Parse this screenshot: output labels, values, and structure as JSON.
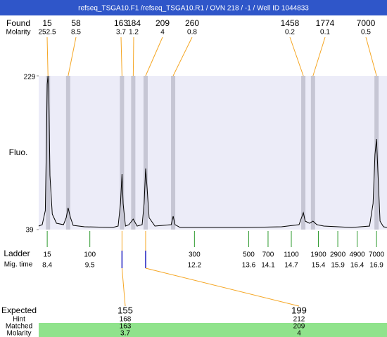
{
  "header": "refseq_TSGA10.F1 /refseq_TSGA10.R1 / OVN 218 / -1 / Well ID 1044833",
  "labels": {
    "found": "Found",
    "molarity": "Molarity",
    "fluo": "Fluo.",
    "ladder": "Ladder",
    "mig_time": "Mig. time",
    "expected": "Expected",
    "hint": "Hint",
    "matched": "Matched",
    "molarity_row": "Molarity"
  },
  "chart_data": {
    "type": "line",
    "xlim": [
      8.18,
      17.17
    ],
    "ylim": [
      39,
      229
    ],
    "yticks": [
      229,
      39
    ],
    "color": "#000000",
    "x": [
      8.18,
      8.27,
      8.35,
      8.38,
      8.4,
      8.42,
      8.44,
      8.47,
      8.53,
      8.64,
      8.82,
      8.89,
      8.94,
      9.0,
      9.07,
      9.36,
      10.09,
      10.23,
      10.29,
      10.33,
      10.36,
      10.42,
      10.51,
      10.62,
      10.72,
      10.85,
      10.9,
      10.94,
      10.98,
      11.03,
      11.18,
      11.6,
      11.65,
      11.7,
      11.83,
      12.63,
      13.54,
      14.45,
      14.9,
      14.95,
      15.01,
      15.06,
      15.17,
      15.26,
      15.36,
      15.54,
      16.26,
      16.72,
      16.81,
      16.86,
      16.9,
      16.94,
      16.99,
      17.08,
      17.17
    ],
    "values": [
      43.3,
      45.1,
      62.4,
      149.2,
      218.6,
      229,
      209.9,
      105.8,
      58.1,
      46.8,
      45.1,
      53.7,
      65.9,
      53.7,
      44.2,
      42.5,
      41.6,
      43.3,
      71.1,
      107.5,
      71.1,
      43.3,
      45.1,
      52.0,
      43.3,
      45.1,
      71.1,
      114.5,
      88.5,
      53.7,
      43.3,
      45.1,
      55.5,
      45.1,
      41.6,
      41.6,
      41.6,
      42.5,
      45.1,
      52.0,
      59.8,
      49.4,
      46.8,
      49.4,
      45.1,
      43.3,
      41.6,
      43.3,
      71.1,
      131.8,
      150.9,
      105.8,
      49.4,
      42.5,
      41.6
    ]
  },
  "found": [
    {
      "size": 15,
      "molarity": 252.5,
      "mig_time": 8.42
    },
    {
      "size": 58,
      "molarity": 8.5,
      "mig_time": 8.94
    },
    {
      "size": 163,
      "molarity": 3.7,
      "mig_time": 10.33
    },
    {
      "size": 184,
      "molarity": 1.2,
      "mig_time": 10.62
    },
    {
      "size": 209,
      "molarity": 4,
      "mig_time": 10.94
    },
    {
      "size": 260,
      "molarity": 0.8,
      "mig_time": 11.65
    },
    {
      "size": 1458,
      "molarity": 0.2,
      "mig_time": 15.01
    },
    {
      "size": 1774,
      "molarity": 0.1,
      "mig_time": 15.26
    },
    {
      "size": 7000,
      "molarity": 0.5,
      "mig_time": 16.9
    }
  ],
  "ladder": [
    {
      "size": 15,
      "time": 8.4
    },
    {
      "size": 100,
      "time": 9.5
    },
    {
      "size": 300,
      "time": 12.2
    },
    {
      "size": 500,
      "time": 13.6
    },
    {
      "size": 700,
      "time": 14.1
    },
    {
      "size": 1100,
      "time": 14.7
    },
    {
      "size": 1900,
      "time": 15.4
    },
    {
      "size": 2900,
      "time": 15.9
    },
    {
      "size": 4900,
      "time": 16.4
    },
    {
      "size": 7000,
      "time": 16.9
    }
  ],
  "expected": [
    {
      "expected": 155,
      "hint": 168,
      "matched": 163,
      "molarity": 3.7
    },
    {
      "expected": 199,
      "hint": 212,
      "matched": 209,
      "molarity": 4
    }
  ]
}
